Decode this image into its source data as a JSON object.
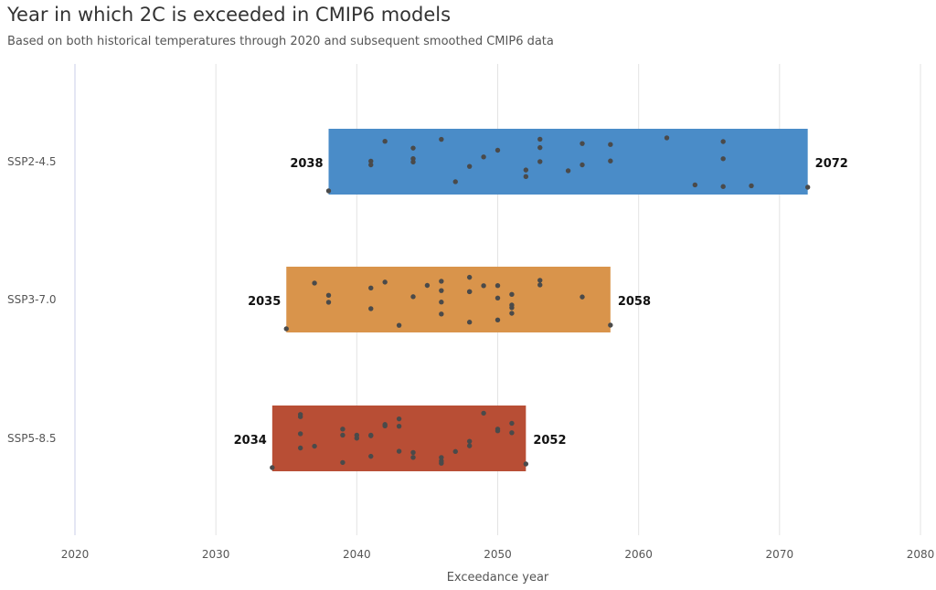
{
  "chart_data": {
    "type": "scatter",
    "title": "Year in which 2C is exceeded in CMIP6 models",
    "subtitle": "Based on both historical temperatures through 2020 and subsequent smoothed CMIP6 data",
    "xlabel": "Exceedance year",
    "xlim": [
      2020,
      2080
    ],
    "xticks": [
      2020,
      2030,
      2040,
      2050,
      2060,
      2070,
      2080
    ],
    "grid": true,
    "categories": [
      "SSP2-4.5",
      "SSP3-7.0",
      "SSP5-8.5"
    ],
    "series": [
      {
        "name": "SSP2-4.5",
        "color": "#4a8cc8",
        "min": 2038,
        "max": 2072,
        "points": [
          2038,
          2041,
          2041,
          2042,
          2044,
          2044,
          2044,
          2046,
          2047,
          2048,
          2049,
          2050,
          2052,
          2052,
          2053,
          2053,
          2053,
          2055,
          2056,
          2056,
          2058,
          2058,
          2062,
          2064,
          2066,
          2066,
          2066,
          2068,
          2072
        ]
      },
      {
        "name": "SSP3-7.0",
        "color": "#d9944b",
        "min": 2035,
        "max": 2058,
        "points": [
          2035,
          2037,
          2038,
          2038,
          2041,
          2041,
          2042,
          2043,
          2044,
          2045,
          2046,
          2046,
          2046,
          2046,
          2048,
          2048,
          2048,
          2048,
          2049,
          2050,
          2050,
          2050,
          2051,
          2051,
          2051,
          2051,
          2053,
          2053,
          2056,
          2058
        ]
      },
      {
        "name": "SSP5-8.5",
        "color": "#b84e35",
        "min": 2034,
        "max": 2052,
        "points": [
          2034,
          2036,
          2036,
          2036,
          2036,
          2037,
          2039,
          2039,
          2039,
          2040,
          2040,
          2041,
          2041,
          2041,
          2042,
          2042,
          2043,
          2043,
          2043,
          2044,
          2044,
          2046,
          2046,
          2046,
          2047,
          2048,
          2048,
          2049,
          2050,
          2050,
          2051,
          2051,
          2052
        ]
      }
    ]
  }
}
